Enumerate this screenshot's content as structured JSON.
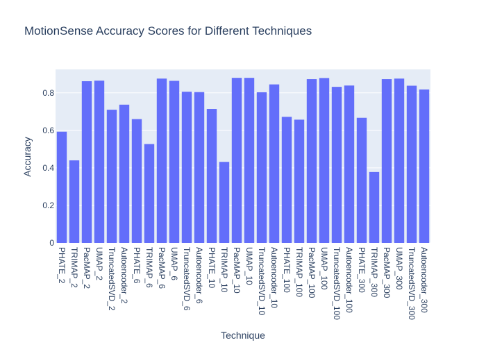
{
  "chart_data": {
    "type": "bar",
    "title": "MotionSense Accuracy Scores for Different Techniques",
    "xlabel": "Technique",
    "ylabel": "Accuracy",
    "ylim": [
      0,
      0.925
    ],
    "yticks": [
      0,
      0.2,
      0.4,
      0.6,
      0.8
    ],
    "grid": true,
    "legend": "none",
    "bar_color": "#636efa",
    "categories": [
      "PHATE_2",
      "TRIMAP_2",
      "PacMAP_2",
      "UMAP_2",
      "TruncatedSVD_2",
      "Autoencoder_2",
      "PHATE_6",
      "TRIMAP_6",
      "PacMAP_6",
      "UMAP_6",
      "TruncatedSVD_6",
      "Autoencoder_6",
      "PHATE_10",
      "TRIMAP_10",
      "PacMAP_10",
      "UMAP_10",
      "TruncatedSVD_10",
      "Autoencoder_10",
      "PHATE_100",
      "TRIMAP_100",
      "PacMAP_100",
      "UMAP_100",
      "TruncatedSVD_100",
      "Autoencoder_100",
      "PHATE_300",
      "TRIMAP_300",
      "PacMAP_300",
      "UMAP_300",
      "TruncatedSVD_300",
      "Autoencoder_300"
    ],
    "values": [
      0.593,
      0.44,
      0.862,
      0.865,
      0.71,
      0.737,
      0.66,
      0.527,
      0.876,
      0.864,
      0.806,
      0.804,
      0.714,
      0.432,
      0.88,
      0.88,
      0.803,
      0.845,
      0.672,
      0.657,
      0.873,
      0.879,
      0.832,
      0.839,
      0.667,
      0.378,
      0.873,
      0.876,
      0.838,
      0.818
    ]
  }
}
